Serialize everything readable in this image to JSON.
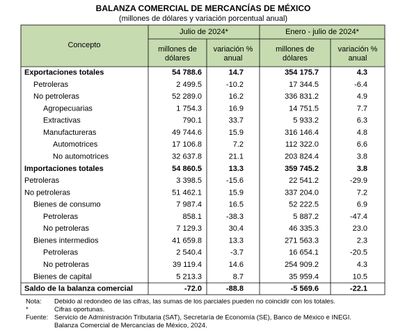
{
  "header": {
    "title": "BALANZA COMERCIAL DE MERCANCÍAS DE MÉXICO",
    "subtitle": "(millones de dólares y variación porcentual anual)"
  },
  "table": {
    "concept_header": "Concepto",
    "period_headers": [
      "Julio de 2024*",
      "Enero - julio de 2024*"
    ],
    "column_headers": [
      [
        "millones de",
        "dólares"
      ],
      [
        "variación %",
        "anual"
      ],
      [
        "millones de",
        "dólares"
      ],
      [
        "variación %",
        "anual"
      ]
    ],
    "rows": [
      [
        "Exportaciones totales",
        "54 788.6",
        "14.7",
        "354 175.7",
        "4.3"
      ],
      [
        "Petroleras",
        "2 499.5",
        "-10.2",
        "17 344.5",
        "-6.4"
      ],
      [
        "No petroleras",
        "52 289.0",
        "16.2",
        "336 831.2",
        "4.9"
      ],
      [
        "Agropecuarias",
        "1 754.3",
        "16.9",
        "14 751.5",
        "7.7"
      ],
      [
        "Extractivas",
        "790.1",
        "33.7",
        "5 933.2",
        "6.3"
      ],
      [
        "Manufactureras",
        "49 744.6",
        "15.9",
        "316 146.4",
        "4.8"
      ],
      [
        "Automotrices",
        "17 106.8",
        "7.2",
        "112 322.0",
        "6.6"
      ],
      [
        "No automotrices",
        "32 637.8",
        "21.1",
        "203 824.4",
        "3.8"
      ],
      [
        "Importaciones totales",
        "54 860.5",
        "13.3",
        "359 745.2",
        "3.8"
      ],
      [
        "Petroleras",
        "3 398.5",
        "-15.6",
        "22 541.2",
        "-29.9"
      ],
      [
        "No petroleras",
        "51 462.1",
        "15.9",
        "337 204.0",
        "7.2"
      ],
      [
        "Bienes de consumo",
        "7 987.4",
        "16.5",
        "52 222.5",
        "6.9"
      ],
      [
        "Petroleras",
        "858.1",
        "-38.3",
        "5 887.2",
        "-47.4"
      ],
      [
        "No petroleras",
        "7 129.3",
        "30.4",
        "46 335.3",
        "23.0"
      ],
      [
        "Bienes intermedios",
        "41 659.8",
        "13.3",
        "271 563.3",
        "2.3"
      ],
      [
        "Petroleras",
        "2 540.4",
        "-3.7",
        "16 654.1",
        "-20.5"
      ],
      [
        "No petroleras",
        "39 119.4",
        "14.6",
        "254 909.2",
        "4.3"
      ],
      [
        "Bienes de capital",
        "5 213.3",
        "8.7",
        "35 959.4",
        "10.5"
      ],
      [
        "Saldo de la balanza comercial",
        "-72.0",
        "-88.8",
        "-5 569.6",
        "-22.1"
      ]
    ]
  },
  "notes": [
    {
      "label": "Nota:",
      "lines": [
        "Debido al redondeo de las cifras, las sumas de los parciales pueden no coincidir con los totales."
      ]
    },
    {
      "label": "*",
      "lines": [
        "Cifras oportunas."
      ]
    },
    {
      "label": "Fuente:",
      "lines": [
        "Servicio de Administración Tributaria (SAT), Secretaría de Economía (SE), Banco de México e INEGI.",
        "Balanza Comercial de Mercancías de México, 2024."
      ]
    }
  ]
}
